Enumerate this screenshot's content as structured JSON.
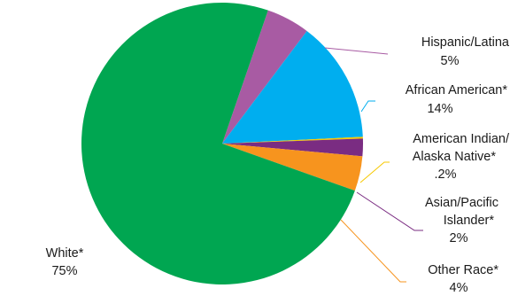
{
  "chart_data": {
    "type": "pie",
    "title": "",
    "slices": [
      {
        "label": "Hispanic/Latina",
        "value_label": "5%",
        "value": 5,
        "color": "#a85ba3"
      },
      {
        "label": "African American*",
        "value_label": "14%",
        "value": 14,
        "color": "#00aeef"
      },
      {
        "label": "American Indian/ Alaska Native*",
        "value_label": ".2%",
        "value": 0.2,
        "color": "#f7c900"
      },
      {
        "label": "Asian/Pacific Islander*",
        "value_label": "2%",
        "value": 2,
        "color": "#7a2c82"
      },
      {
        "label": "Other Race*",
        "value_label": "4%",
        "value": 4,
        "color": "#f7941e"
      },
      {
        "label": "White*",
        "value_label": "75%",
        "value": 75,
        "color": "#00a651"
      }
    ],
    "legend": "none (leader-line labels)"
  }
}
